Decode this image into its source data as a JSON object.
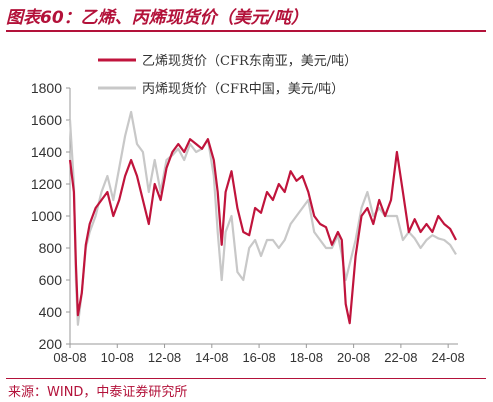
{
  "figure": {
    "title": "图表60：乙烯、丙烯现货价（美元/吨）",
    "source": "来源：WIND，中泰证券研究所"
  },
  "colors": {
    "accent": "#b3123a",
    "series_ethylene": "#c0143c",
    "series_propylene": "#c8c8c8",
    "axis": "#999999",
    "text": "#333333"
  },
  "chart_data": {
    "type": "line",
    "xlabel": "",
    "ylabel": "",
    "ylim": [
      200,
      1800
    ],
    "yticks": [
      200,
      400,
      600,
      800,
      1000,
      1200,
      1400,
      1600,
      1800
    ],
    "xticks": [
      "08-08",
      "10-08",
      "12-08",
      "14-08",
      "16-08",
      "18-08",
      "20-08",
      "22-08",
      "24-08"
    ],
    "xlim": [
      "2008-08",
      "2025-01"
    ],
    "legend_position": "top-right",
    "series": [
      {
        "name": "乙烯现货价（CFR东南亚，美元/吨）",
        "color": "#c0143c",
        "x": [
          "2008-08",
          "2008-10",
          "2008-11",
          "2008-12",
          "2009-02",
          "2009-04",
          "2009-06",
          "2009-09",
          "2009-12",
          "2010-03",
          "2010-06",
          "2010-09",
          "2010-12",
          "2011-03",
          "2011-06",
          "2011-09",
          "2011-12",
          "2012-03",
          "2012-06",
          "2012-09",
          "2012-12",
          "2013-03",
          "2013-06",
          "2013-09",
          "2013-12",
          "2014-03",
          "2014-06",
          "2014-09",
          "2014-11",
          "2015-01",
          "2015-03",
          "2015-06",
          "2015-09",
          "2015-12",
          "2016-03",
          "2016-06",
          "2016-09",
          "2016-12",
          "2017-03",
          "2017-06",
          "2017-09",
          "2017-12",
          "2018-03",
          "2018-06",
          "2018-09",
          "2018-12",
          "2019-03",
          "2019-06",
          "2019-09",
          "2019-12",
          "2020-02",
          "2020-04",
          "2020-06",
          "2020-09",
          "2020-12",
          "2021-03",
          "2021-06",
          "2021-09",
          "2021-12",
          "2022-03",
          "2022-06",
          "2022-09",
          "2022-12",
          "2023-03",
          "2023-06",
          "2023-09",
          "2023-12",
          "2024-03",
          "2024-06",
          "2024-09",
          "2024-12"
        ],
        "values": [
          1350,
          1150,
          700,
          380,
          520,
          820,
          950,
          1050,
          1100,
          1150,
          1000,
          1100,
          1250,
          1350,
          1250,
          1100,
          950,
          1200,
          1100,
          1300,
          1400,
          1450,
          1400,
          1480,
          1450,
          1420,
          1480,
          1350,
          1150,
          820,
          1150,
          1280,
          1050,
          900,
          880,
          1050,
          1020,
          1150,
          1100,
          1200,
          1150,
          1280,
          1220,
          1250,
          1150,
          1000,
          950,
          930,
          820,
          900,
          850,
          450,
          330,
          750,
          1000,
          1050,
          950,
          1100,
          1000,
          1100,
          1400,
          1150,
          900,
          980,
          900,
          950,
          900,
          1000,
          950,
          920,
          850
        ]
      },
      {
        "name": "丙烯现货价（CFR中国，美元/吨）",
        "color": "#c8c8c8",
        "x": [
          "2008-08",
          "2008-10",
          "2008-11",
          "2008-12",
          "2009-02",
          "2009-04",
          "2009-06",
          "2009-09",
          "2009-12",
          "2010-03",
          "2010-06",
          "2010-09",
          "2010-12",
          "2011-03",
          "2011-06",
          "2011-09",
          "2011-12",
          "2012-03",
          "2012-06",
          "2012-09",
          "2012-12",
          "2013-03",
          "2013-06",
          "2013-09",
          "2013-12",
          "2014-03",
          "2014-06",
          "2014-09",
          "2014-11",
          "2015-01",
          "2015-03",
          "2015-06",
          "2015-09",
          "2015-12",
          "2016-03",
          "2016-06",
          "2016-09",
          "2016-12",
          "2017-03",
          "2017-06",
          "2017-09",
          "2017-12",
          "2018-03",
          "2018-06",
          "2018-09",
          "2018-12",
          "2019-03",
          "2019-06",
          "2019-09",
          "2019-12",
          "2020-02",
          "2020-04",
          "2020-06",
          "2020-09",
          "2020-12",
          "2021-03",
          "2021-06",
          "2021-09",
          "2021-12",
          "2022-03",
          "2022-06",
          "2022-09",
          "2022-12",
          "2023-03",
          "2023-06",
          "2023-09",
          "2023-12",
          "2024-03",
          "2024-06",
          "2024-09",
          "2024-12"
        ],
        "values": [
          1600,
          1200,
          600,
          320,
          520,
          800,
          900,
          1000,
          1150,
          1250,
          1100,
          1300,
          1500,
          1650,
          1450,
          1400,
          1150,
          1350,
          1150,
          1350,
          1380,
          1420,
          1350,
          1450,
          1400,
          1420,
          1480,
          1250,
          900,
          600,
          900,
          1000,
          650,
          600,
          800,
          850,
          750,
          850,
          850,
          800,
          850,
          950,
          1000,
          1050,
          1100,
          900,
          850,
          800,
          800,
          880,
          760,
          600,
          700,
          850,
          1050,
          1150,
          1000,
          1050,
          1000,
          1000,
          1000,
          850,
          900,
          860,
          800,
          850,
          880,
          860,
          850,
          820,
          760
        ]
      }
    ]
  }
}
